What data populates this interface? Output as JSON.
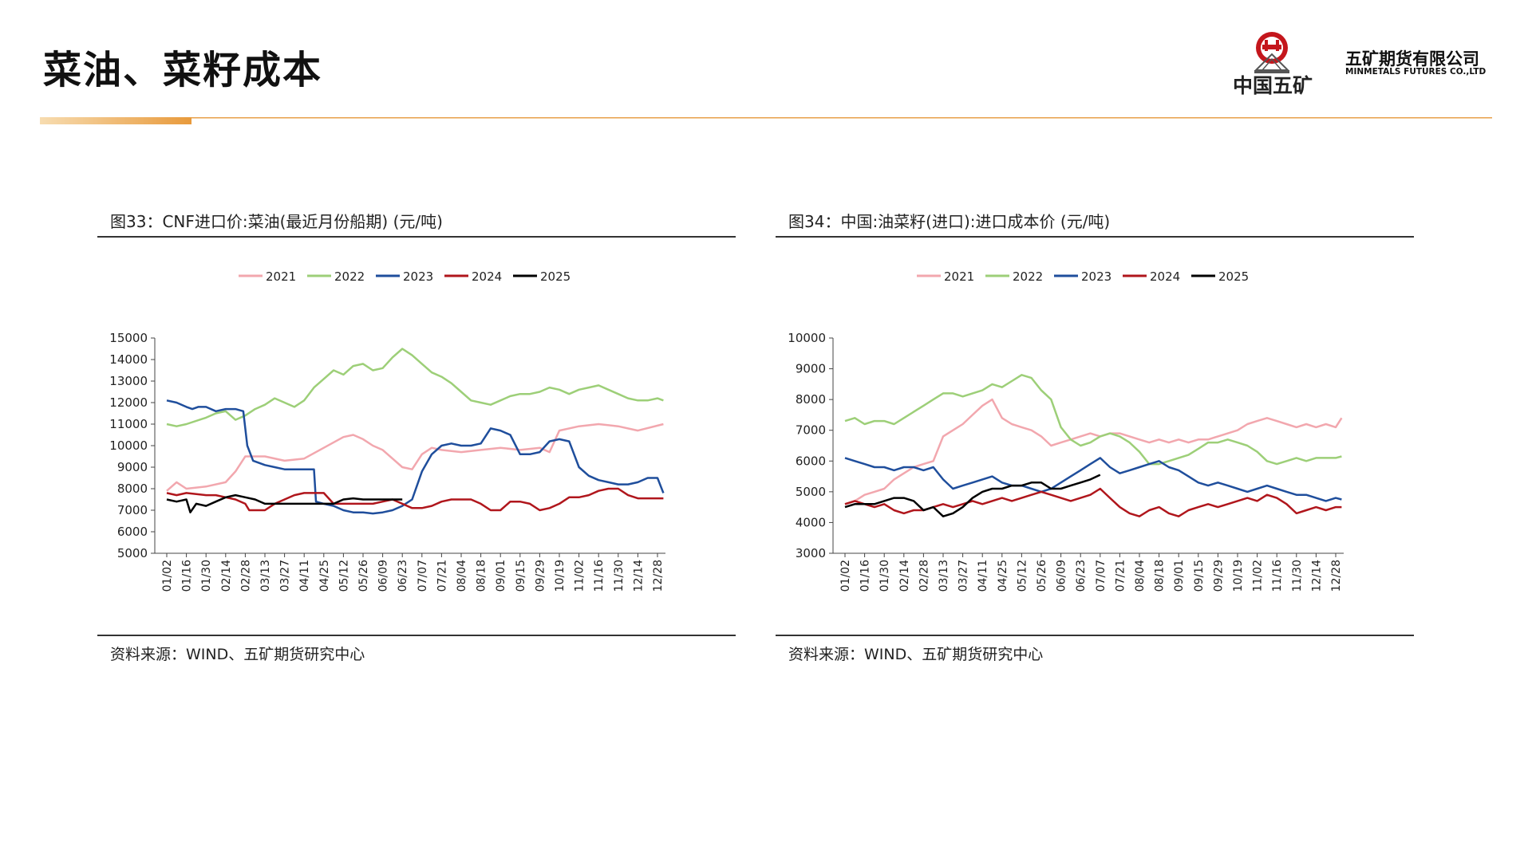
{
  "page": {
    "title": "菜油、菜籽成本"
  },
  "logo": {
    "cn_name": "中国五矿",
    "company": "五矿期货有限公司",
    "company_en": "MINMETALS FUTURES CO.,LTD"
  },
  "colors": {
    "accent": "#e8a04a",
    "y2021": "#f2a7ae",
    "y2022": "#9dcf78",
    "y2023": "#1f4e9c",
    "y2024": "#b0161c",
    "y2025": "#000000"
  },
  "charts": [
    {
      "title": "图33：CNF进口价:菜油(最近月份船期)  (元/吨)",
      "source": "资料来源：WIND、五矿期货研究中心"
    },
    {
      "title": "图34：中国:油菜籽(进口):进口成本价 (元/吨)",
      "source": "资料来源：WIND、五矿期货研究中心"
    }
  ],
  "chart_data": [
    {
      "type": "line",
      "ylim": [
        5000,
        15000
      ],
      "yticks": [
        5000,
        6000,
        7000,
        8000,
        9000,
        10000,
        11000,
        12000,
        13000,
        14000,
        15000
      ],
      "xticks": [
        "01/02",
        "01/16",
        "01/30",
        "02/14",
        "02/28",
        "03/13",
        "03/27",
        "04/11",
        "04/25",
        "05/12",
        "05/26",
        "06/09",
        "06/23",
        "07/07",
        "07/21",
        "08/04",
        "08/18",
        "09/01",
        "09/15",
        "09/29",
        "10/19",
        "11/02",
        "11/16",
        "11/30",
        "12/14",
        "12/28"
      ],
      "legend": "top",
      "series": [
        {
          "name": "2021",
          "color": "#f2a7ae",
          "x": [
            0,
            0.5,
            1,
            2,
            3,
            3.5,
            4,
            5,
            6,
            7,
            8,
            9,
            9.5,
            10,
            10.5,
            11,
            11.5,
            12,
            12.5,
            13,
            13.5,
            14,
            15,
            16,
            17,
            18,
            19,
            19.5,
            20,
            21,
            22,
            23,
            24,
            25.3
          ],
          "values": [
            7900,
            8300,
            8000,
            8100,
            8300,
            8800,
            9500,
            9500,
            9300,
            9400,
            9900,
            10400,
            10500,
            10300,
            10000,
            9800,
            9400,
            9000,
            8900,
            9600,
            9900,
            9800,
            9700,
            9800,
            9900,
            9800,
            9900,
            9700,
            10700,
            10900,
            11000,
            10900,
            10700,
            11000
          ]
        },
        {
          "name": "2022",
          "color": "#9dcf78",
          "x": [
            0,
            0.5,
            1,
            2,
            2.5,
            3,
            3.5,
            4,
            4.5,
            5,
            5.5,
            6,
            6.5,
            7,
            7.5,
            8,
            8.5,
            9,
            9.5,
            10,
            10.5,
            11,
            11.5,
            12,
            12.5,
            13,
            13.5,
            14,
            14.5,
            15,
            15.5,
            16,
            16.5,
            17,
            17.5,
            18,
            18.5,
            19,
            19.5,
            20,
            20.5,
            21,
            21.5,
            22,
            22.5,
            23,
            23.5,
            24,
            24.5,
            25,
            25.3
          ],
          "values": [
            11000,
            10900,
            11000,
            11300,
            11500,
            11600,
            11200,
            11400,
            11700,
            11900,
            12200,
            12000,
            11800,
            12100,
            12700,
            13100,
            13500,
            13300,
            13700,
            13800,
            13500,
            13600,
            14100,
            14500,
            14200,
            13800,
            13400,
            13200,
            12900,
            12500,
            12100,
            12000,
            11900,
            12100,
            12300,
            12400,
            12400,
            12500,
            12700,
            12600,
            12400,
            12600,
            12700,
            12800,
            12600,
            12400,
            12200,
            12100,
            12100,
            12200,
            12100
          ]
        },
        {
          "name": "2023",
          "color": "#1f4e9c",
          "x": [
            0,
            0.5,
            1,
            1.3,
            1.6,
            2,
            2.5,
            3,
            3.5,
            3.9,
            4.1,
            4.4,
            5,
            5.5,
            6,
            6.5,
            7,
            7.5,
            7.6,
            8,
            8.5,
            9,
            9.5,
            10,
            10.5,
            11,
            11.5,
            12,
            12.5,
            13,
            13.5,
            14,
            14.5,
            15,
            15.5,
            16,
            16.5,
            17,
            17.5,
            18,
            18.5,
            19,
            19.5,
            20,
            20.5,
            21,
            21.5,
            22,
            22.5,
            23,
            23.5,
            24,
            24.5,
            25,
            25.3
          ],
          "values": [
            12100,
            12000,
            11800,
            11700,
            11800,
            11800,
            11600,
            11700,
            11700,
            11600,
            10000,
            9300,
            9100,
            9000,
            8900,
            8900,
            8900,
            8900,
            7400,
            7300,
            7200,
            7000,
            6900,
            6900,
            6850,
            6900,
            7000,
            7200,
            7500,
            8800,
            9600,
            10000,
            10100,
            10000,
            10000,
            10100,
            10800,
            10700,
            10500,
            9600,
            9600,
            9700,
            10200,
            10300,
            10200,
            9000,
            8600,
            8400,
            8300,
            8200,
            8200,
            8300,
            8500,
            8500,
            7800
          ]
        },
        {
          "name": "2024",
          "color": "#b0161c",
          "x": [
            0,
            0.5,
            1,
            2,
            2.5,
            3,
            3.5,
            4,
            4.2,
            5,
            5.5,
            6,
            6.5,
            7,
            7.5,
            8,
            8.5,
            9,
            9.5,
            10,
            10.5,
            11,
            11.5,
            12,
            12.5,
            13,
            13.5,
            14,
            14.5,
            15,
            15.5,
            16,
            16.5,
            17,
            17.5,
            18,
            18.5,
            19,
            19.5,
            20,
            20.5,
            21,
            21.5,
            22,
            22.5,
            23,
            23.5,
            24,
            24.5,
            25,
            25.3
          ],
          "values": [
            7800,
            7700,
            7800,
            7700,
            7700,
            7600,
            7500,
            7300,
            7000,
            7000,
            7300,
            7500,
            7700,
            7800,
            7800,
            7800,
            7300,
            7300,
            7300,
            7300,
            7300,
            7400,
            7500,
            7300,
            7100,
            7100,
            7200,
            7400,
            7500,
            7500,
            7500,
            7300,
            7000,
            7000,
            7400,
            7400,
            7300,
            7000,
            7100,
            7300,
            7600,
            7600,
            7700,
            7900,
            8000,
            8000,
            7700,
            7550,
            7550,
            7550,
            7550
          ]
        },
        {
          "name": "2025",
          "color": "#000000",
          "x": [
            0,
            0.5,
            1,
            1.2,
            1.5,
            2,
            2.5,
            3,
            3.5,
            4,
            4.5,
            5,
            5.5,
            6,
            6.5,
            7,
            7.5,
            8,
            8.5,
            9,
            9.5,
            10,
            10.5,
            11,
            11.5,
            12
          ],
          "values": [
            7500,
            7400,
            7500,
            6900,
            7300,
            7200,
            7400,
            7600,
            7700,
            7600,
            7500,
            7300,
            7300,
            7300,
            7300,
            7300,
            7300,
            7300,
            7300,
            7500,
            7550,
            7500,
            7500,
            7500,
            7500,
            7500
          ]
        }
      ]
    },
    {
      "type": "line",
      "ylim": [
        3000,
        10000
      ],
      "yticks": [
        3000,
        4000,
        5000,
        6000,
        7000,
        8000,
        9000,
        10000
      ],
      "xticks": [
        "01/02",
        "01/16",
        "01/30",
        "02/14",
        "02/28",
        "03/13",
        "03/27",
        "04/11",
        "04/25",
        "05/12",
        "05/26",
        "06/09",
        "06/23",
        "07/07",
        "07/21",
        "08/04",
        "08/18",
        "09/01",
        "09/15",
        "09/29",
        "10/19",
        "11/02",
        "11/16",
        "11/30",
        "12/14",
        "12/28"
      ],
      "legend": "top",
      "series": [
        {
          "name": "2021",
          "color": "#f2a7ae",
          "x": [
            0,
            0.5,
            1,
            1.5,
            2,
            2.5,
            3,
            3.5,
            4,
            4.5,
            5,
            5.5,
            6,
            6.5,
            7,
            7.5,
            8,
            8.5,
            9,
            9.5,
            10,
            10.5,
            11,
            11.5,
            12,
            12.5,
            13,
            13.5,
            14,
            14.5,
            15,
            15.5,
            16,
            16.5,
            17,
            17.5,
            18,
            18.5,
            19,
            19.5,
            20,
            20.5,
            21,
            21.5,
            22,
            22.5,
            23,
            23.5,
            24,
            24.5,
            25,
            25.3
          ],
          "values": [
            4600,
            4700,
            4900,
            5000,
            5100,
            5400,
            5600,
            5800,
            5900,
            6000,
            6800,
            7000,
            7200,
            7500,
            7800,
            8000,
            7400,
            7200,
            7100,
            7000,
            6800,
            6500,
            6600,
            6700,
            6800,
            6900,
            6800,
            6900,
            6900,
            6800,
            6700,
            6600,
            6700,
            6600,
            6700,
            6600,
            6700,
            6700,
            6800,
            6900,
            7000,
            7200,
            7300,
            7400,
            7300,
            7200,
            7100,
            7200,
            7100,
            7200,
            7100,
            7400
          ]
        },
        {
          "name": "2022",
          "color": "#9dcf78",
          "x": [
            0,
            0.5,
            1,
            1.5,
            2,
            2.5,
            3,
            3.5,
            4,
            4.5,
            5,
            5.5,
            6,
            6.5,
            7,
            7.5,
            8,
            8.5,
            9,
            9.5,
            10,
            10.5,
            11,
            11.5,
            12,
            12.5,
            13,
            13.5,
            14,
            14.5,
            15,
            15.5,
            16,
            16.5,
            17,
            17.5,
            18,
            18.5,
            19,
            19.5,
            20,
            20.5,
            21,
            21.5,
            22,
            22.5,
            23,
            23.5,
            24,
            24.5,
            25,
            25.3
          ],
          "values": [
            7300,
            7400,
            7200,
            7300,
            7300,
            7200,
            7400,
            7600,
            7800,
            8000,
            8200,
            8200,
            8100,
            8200,
            8300,
            8500,
            8400,
            8600,
            8800,
            8700,
            8300,
            8000,
            7100,
            6700,
            6500,
            6600,
            6800,
            6900,
            6800,
            6600,
            6300,
            5900,
            5900,
            6000,
            6100,
            6200,
            6400,
            6600,
            6600,
            6700,
            6600,
            6500,
            6300,
            6000,
            5900,
            6000,
            6100,
            6000,
            6100,
            6100,
            6100,
            6150
          ]
        },
        {
          "name": "2023",
          "color": "#1f4e9c",
          "x": [
            0,
            0.5,
            1,
            1.5,
            2,
            2.5,
            3,
            3.5,
            4,
            4.5,
            5,
            5.5,
            6,
            6.5,
            7,
            7.5,
            8,
            8.5,
            9,
            9.5,
            10,
            10.5,
            11,
            11.5,
            12,
            12.5,
            13,
            13.5,
            14,
            14.5,
            15,
            15.5,
            16,
            16.5,
            17,
            17.5,
            18,
            18.5,
            19,
            19.5,
            20,
            20.5,
            21,
            21.5,
            22,
            22.5,
            23,
            23.5,
            24,
            24.5,
            25,
            25.3
          ],
          "values": [
            6100,
            6000,
            5900,
            5800,
            5800,
            5700,
            5800,
            5800,
            5700,
            5800,
            5400,
            5100,
            5200,
            5300,
            5400,
            5500,
            5300,
            5200,
            5200,
            5100,
            5000,
            5100,
            5300,
            5500,
            5700,
            5900,
            6100,
            5800,
            5600,
            5700,
            5800,
            5900,
            6000,
            5800,
            5700,
            5500,
            5300,
            5200,
            5300,
            5200,
            5100,
            5000,
            5100,
            5200,
            5100,
            5000,
            4900,
            4900,
            4800,
            4700,
            4800,
            4750
          ]
        },
        {
          "name": "2024",
          "color": "#b0161c",
          "x": [
            0,
            0.5,
            1,
            1.5,
            2,
            2.5,
            3,
            3.5,
            4,
            4.5,
            5,
            5.5,
            6,
            6.5,
            7,
            7.5,
            8,
            8.5,
            9,
            9.5,
            10,
            10.5,
            11,
            11.5,
            12,
            12.5,
            13,
            13.5,
            14,
            14.5,
            15,
            15.5,
            16,
            16.5,
            17,
            17.5,
            18,
            18.5,
            19,
            19.5,
            20,
            20.5,
            21,
            21.5,
            22,
            22.5,
            23,
            23.5,
            24,
            24.5,
            25,
            25.3
          ],
          "values": [
            4600,
            4700,
            4600,
            4500,
            4600,
            4400,
            4300,
            4400,
            4400,
            4500,
            4600,
            4500,
            4600,
            4700,
            4600,
            4700,
            4800,
            4700,
            4800,
            4900,
            5000,
            4900,
            4800,
            4700,
            4800,
            4900,
            5100,
            4800,
            4500,
            4300,
            4200,
            4400,
            4500,
            4300,
            4200,
            4400,
            4500,
            4600,
            4500,
            4600,
            4700,
            4800,
            4700,
            4900,
            4800,
            4600,
            4300,
            4400,
            4500,
            4400,
            4500,
            4500
          ]
        },
        {
          "name": "2025",
          "color": "#000000",
          "x": [
            0,
            0.5,
            1,
            1.5,
            2,
            2.5,
            3,
            3.5,
            4,
            4.5,
            5,
            5.5,
            6,
            6.5,
            7,
            7.5,
            8,
            8.5,
            9,
            9.5,
            10,
            10.5,
            11,
            11.5,
            12,
            12.5,
            13
          ],
          "values": [
            4500,
            4600,
            4600,
            4600,
            4700,
            4800,
            4800,
            4700,
            4400,
            4500,
            4200,
            4300,
            4500,
            4800,
            5000,
            5100,
            5100,
            5200,
            5200,
            5300,
            5300,
            5100,
            5100,
            5200,
            5300,
            5400,
            5550
          ]
        }
      ]
    }
  ]
}
